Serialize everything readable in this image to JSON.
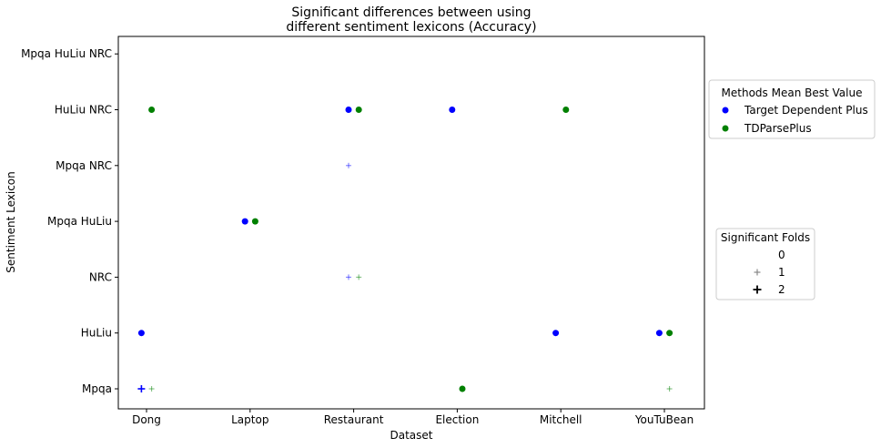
{
  "chart_data": {
    "type": "scatter",
    "title": [
      "Significant differences between using",
      "different sentiment lexicons (Accuracy)"
    ],
    "xlabel": "Dataset",
    "ylabel": "Sentiment Lexicon",
    "x_categories": [
      "Dong",
      "Laptop",
      "Restaurant",
      "Election",
      "Mitchell",
      "YouTuBean"
    ],
    "y_categories": [
      "Mpqa",
      "HuLiu",
      "NRC",
      "Mpqa HuLiu",
      "Mpqa NRC",
      "HuLiu NRC",
      "Mpqa HuLiu NRC"
    ],
    "grid": false,
    "series": [
      {
        "name": "Target Dependent Plus",
        "color": "#0000ff"
      },
      {
        "name": "TDParsePlus",
        "color": "#008000"
      }
    ],
    "legend_methods": {
      "title": "Methods Mean Best Value",
      "placement": "right, upper",
      "items": [
        "Target Dependent Plus",
        "TDParsePlus"
      ]
    },
    "legend_folds": {
      "title": "Significant Folds",
      "placement": "right, middle",
      "items": [
        "0",
        "1",
        "2"
      ]
    },
    "best_value_points": [
      {
        "series": "TDParsePlus",
        "dataset": "Dong",
        "lexicon": "HuLiu NRC"
      },
      {
        "series": "Target Dependent Plus",
        "dataset": "Dong",
        "lexicon": "HuLiu"
      },
      {
        "series": "Target Dependent Plus",
        "dataset": "Laptop",
        "lexicon": "Mpqa HuLiu"
      },
      {
        "series": "TDParsePlus",
        "dataset": "Laptop",
        "lexicon": "Mpqa HuLiu"
      },
      {
        "series": "Target Dependent Plus",
        "dataset": "Restaurant",
        "lexicon": "HuLiu NRC"
      },
      {
        "series": "TDParsePlus",
        "dataset": "Restaurant",
        "lexicon": "HuLiu NRC"
      },
      {
        "series": "Target Dependent Plus",
        "dataset": "Election",
        "lexicon": "HuLiu NRC"
      },
      {
        "series": "TDParsePlus",
        "dataset": "Election",
        "lexicon": "Mpqa"
      },
      {
        "series": "TDParsePlus",
        "dataset": "Mitchell",
        "lexicon": "HuLiu NRC"
      },
      {
        "series": "Target Dependent Plus",
        "dataset": "Mitchell",
        "lexicon": "HuLiu"
      },
      {
        "series": "Target Dependent Plus",
        "dataset": "YouTuBean",
        "lexicon": "HuLiu"
      },
      {
        "series": "TDParsePlus",
        "dataset": "YouTuBean",
        "lexicon": "HuLiu"
      }
    ],
    "significant_fold_points": [
      {
        "series": "Target Dependent Plus",
        "dataset": "Dong",
        "lexicon": "Mpqa",
        "folds": 2
      },
      {
        "series": "TDParsePlus",
        "dataset": "Dong",
        "lexicon": "Mpqa",
        "folds": 1
      },
      {
        "series": "Target Dependent Plus",
        "dataset": "Restaurant",
        "lexicon": "Mpqa NRC",
        "folds": 1
      },
      {
        "series": "Target Dependent Plus",
        "dataset": "Restaurant",
        "lexicon": "NRC",
        "folds": 1
      },
      {
        "series": "TDParsePlus",
        "dataset": "Restaurant",
        "lexicon": "NRC",
        "folds": 1
      },
      {
        "series": "TDParsePlus",
        "dataset": "YouTuBean",
        "lexicon": "Mpqa",
        "folds": 1
      }
    ]
  }
}
